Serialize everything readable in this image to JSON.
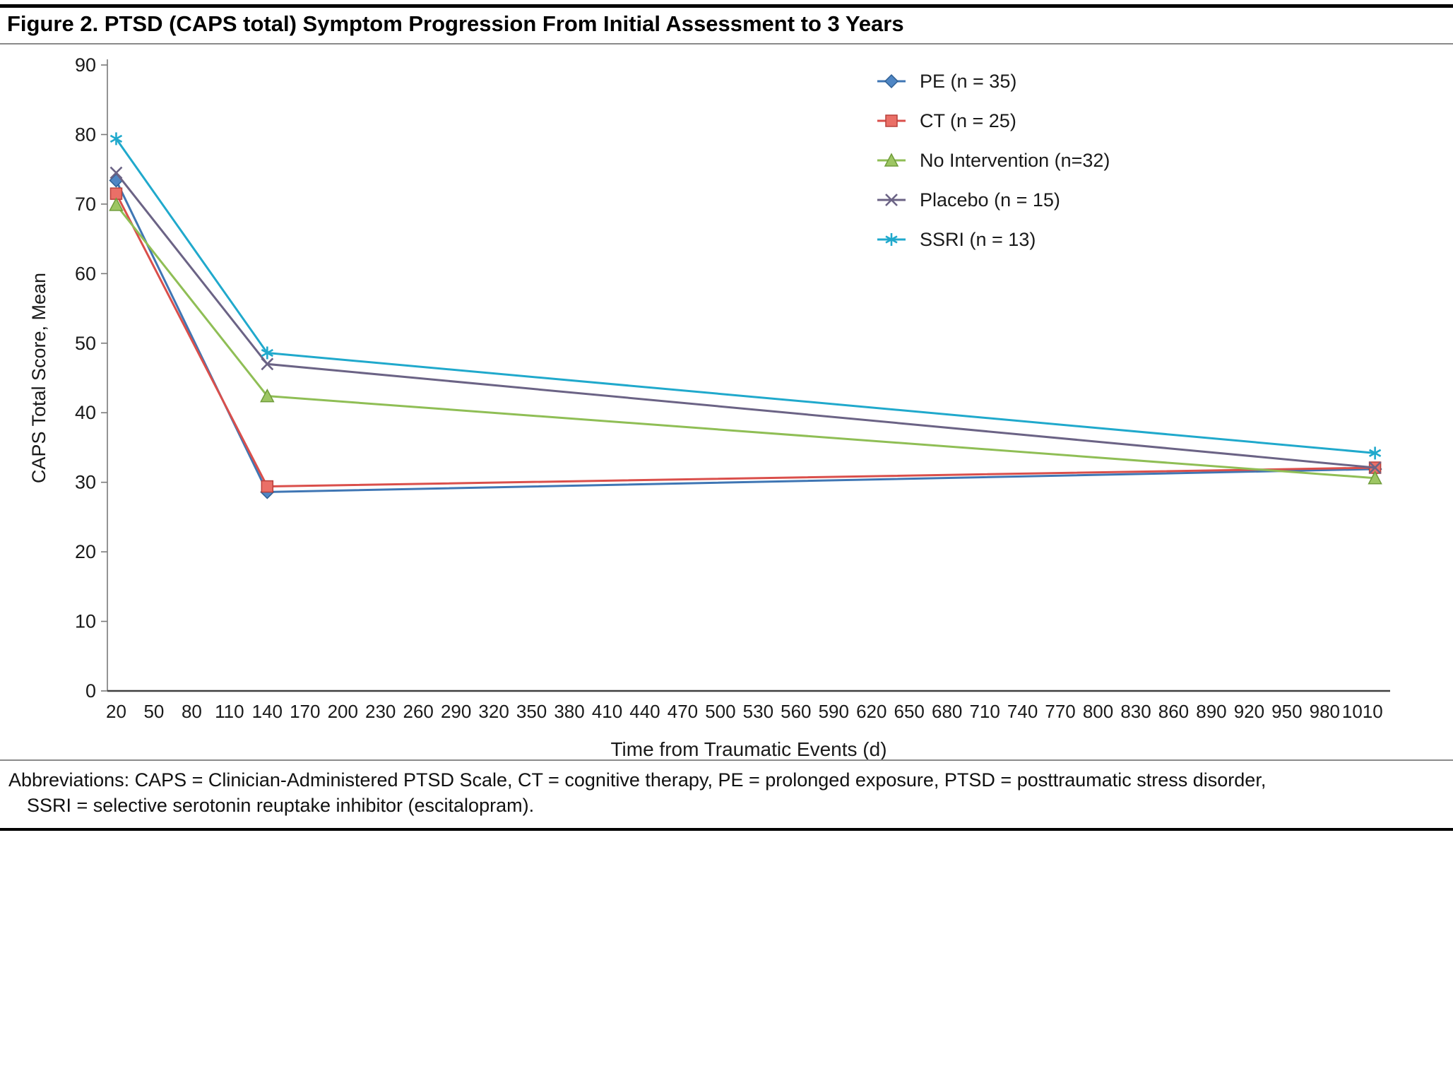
{
  "figure": {
    "title": "Figure 2. PTSD (CAPS total) Symptom Progression From Initial Assessment to 3 Years",
    "abbreviations_line1": "Abbreviations: CAPS = Clinician-Administered PTSD Scale, CT = cognitive therapy, PE = prolonged exposure, PTSD = posttraumatic stress disorder,",
    "abbreviations_line2": "SSRI = selective serotonin reuptake inhibitor (escitalopram)."
  },
  "chart_data": {
    "type": "line",
    "title": "Figure 2. PTSD (CAPS total) Symptom Progression From Initial Assessment to 3 Years",
    "xlabel": "Time from Traumatic Events (d)",
    "ylabel": "CAPS Total Score, Mean",
    "x": [
      20,
      140,
      1020
    ],
    "xlim": [
      13,
      1032
    ],
    "ylim": [
      0,
      90
    ],
    "ytick_interval": 10,
    "xticks": [
      20,
      50,
      80,
      110,
      140,
      170,
      200,
      230,
      260,
      290,
      320,
      350,
      380,
      410,
      440,
      470,
      500,
      530,
      560,
      590,
      620,
      650,
      680,
      710,
      740,
      770,
      800,
      830,
      860,
      890,
      920,
      950,
      980,
      1010
    ],
    "grid": false,
    "legend_position": "top-right",
    "series": [
      {
        "id": "pe",
        "name": "PE  (n = 35)",
        "marker": "diamond",
        "color": "#3f76b4",
        "marker_fill": "#4f86c4",
        "marker_stroke": "#2e5f94",
        "values": [
          73.4,
          28.6,
          31.9
        ]
      },
      {
        "id": "ct",
        "name": "CT (n = 25)",
        "marker": "square",
        "color": "#da4f4b",
        "marker_fill": "#ea6f67",
        "marker_stroke": "#b8403c",
        "values": [
          71.5,
          29.4,
          32.1
        ]
      },
      {
        "id": "no-intervention",
        "name": "No Intervention (n=32)",
        "marker": "triangle",
        "color": "#8fbe55",
        "marker_fill": "#9dc663",
        "marker_stroke": "#6f9c3a",
        "values": [
          69.9,
          42.4,
          30.6
        ]
      },
      {
        "id": "placebo",
        "name": "Placebo (n = 15)",
        "marker": "x",
        "color": "#6b6385",
        "marker_fill": "#6b6385",
        "marker_stroke": "#6b6385",
        "values": [
          74.5,
          47.0,
          32.1
        ]
      },
      {
        "id": "ssri",
        "name": "SSRI (n = 13)",
        "marker": "asterisk",
        "color": "#20a9cc",
        "marker_fill": "#20a9cc",
        "marker_stroke": "#20a9cc",
        "values": [
          79.4,
          48.6,
          34.2
        ]
      }
    ]
  }
}
